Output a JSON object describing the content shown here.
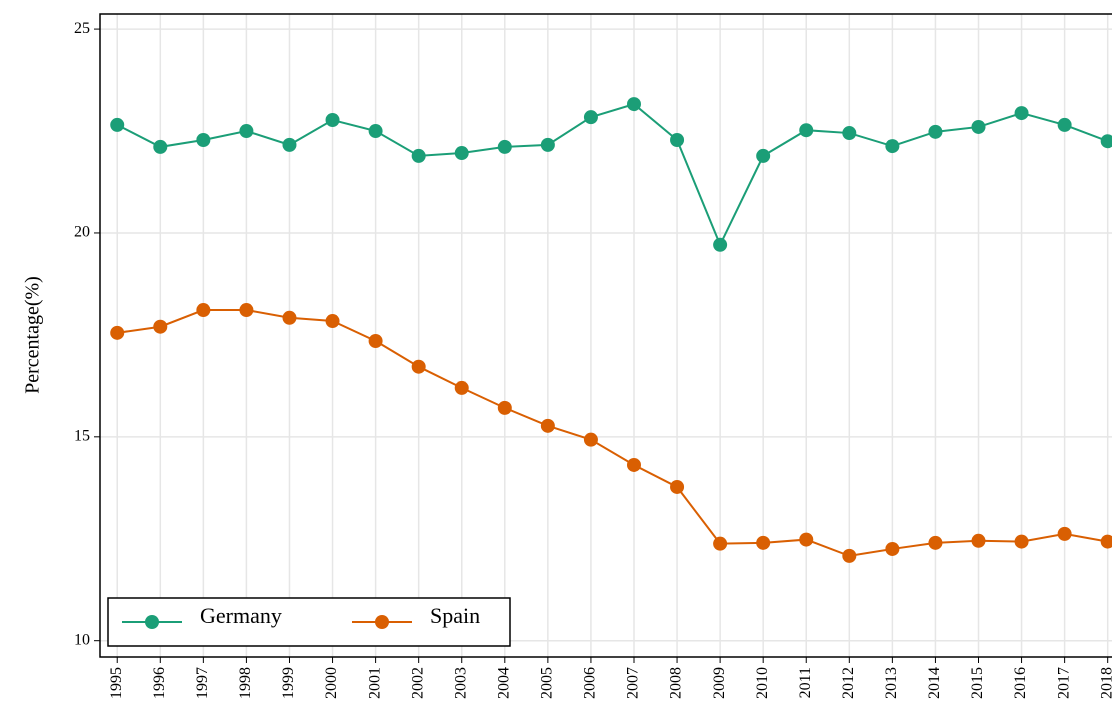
{
  "chart_data": {
    "type": "line",
    "ylabel": "Percentage(%)",
    "x": [
      1995,
      1996,
      1997,
      1998,
      1999,
      2000,
      2001,
      2002,
      2003,
      2004,
      2005,
      2006,
      2007,
      2008,
      2009,
      2010,
      2011,
      2012,
      2013,
      2014,
      2015,
      2016,
      2017,
      2018
    ],
    "series": [
      {
        "name": "Germany",
        "color": "#1b9e77",
        "values": [
          22.65,
          22.11,
          22.28,
          22.5,
          22.16,
          22.77,
          22.5,
          21.89,
          21.96,
          22.11,
          22.16,
          22.84,
          23.16,
          22.28,
          19.71,
          21.89,
          22.52,
          22.45,
          22.13,
          22.48,
          22.6,
          22.94,
          22.65,
          22.25
        ]
      },
      {
        "name": "Spain",
        "color": "#d95f02",
        "values": [
          17.55,
          17.7,
          18.11,
          18.11,
          17.92,
          17.84,
          17.35,
          16.72,
          16.2,
          15.71,
          15.27,
          14.93,
          14.31,
          13.77,
          12.38,
          12.4,
          12.48,
          12.08,
          12.25,
          12.4,
          12.45,
          12.43,
          12.62,
          12.43
        ]
      }
    ],
    "xlim": [
      1994.6,
      2018.1
    ],
    "xticks": [
      1995,
      1996,
      1997,
      1998,
      1999,
      2000,
      2001,
      2002,
      2003,
      2004,
      2005,
      2006,
      2007,
      2008,
      2009,
      2010,
      2011,
      2012,
      2013,
      2014,
      2015,
      2016,
      2017,
      2018
    ],
    "ylim": [
      9.6,
      25.37
    ],
    "yticks": [
      10,
      15,
      20,
      25
    ],
    "grid": true,
    "legend": "lower left"
  }
}
